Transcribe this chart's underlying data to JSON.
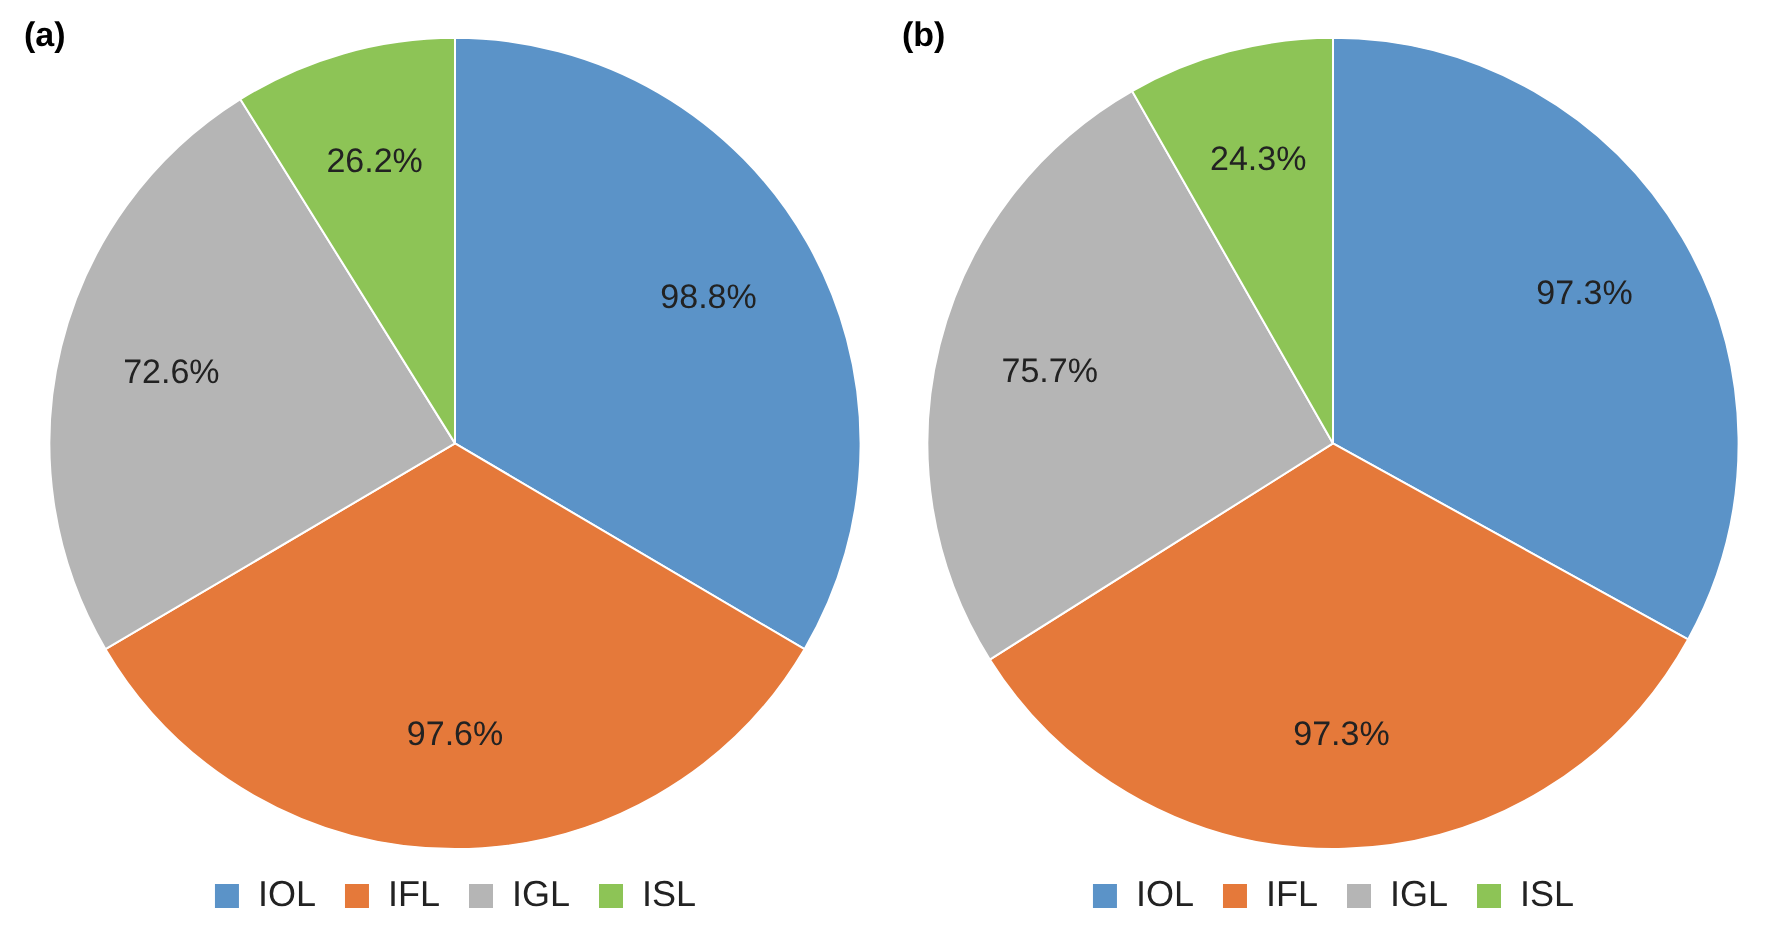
{
  "chart_data": [
    {
      "type": "pie",
      "title": "(a)",
      "categories": [
        "IOL",
        "IFL",
        "IGL",
        "ISL"
      ],
      "values": [
        98.8,
        97.6,
        72.6,
        26.2
      ],
      "colors": [
        "#5b93c8",
        "#e5793a",
        "#b5b5b5",
        "#8dc456"
      ],
      "value_labels": [
        "98.8%",
        "97.6%",
        "72.6%",
        "26.2%"
      ],
      "legend": "bottom"
    },
    {
      "type": "pie",
      "title": "(b)",
      "categories": [
        "IOL",
        "IFL",
        "IGL",
        "ISL"
      ],
      "values": [
        97.3,
        97.3,
        75.7,
        24.3
      ],
      "colors": [
        "#5b93c8",
        "#e5793a",
        "#b5b5b5",
        "#8dc456"
      ],
      "value_labels": [
        "97.3%",
        "97.3%",
        "75.7%",
        "24.3%"
      ],
      "legend": "bottom"
    }
  ]
}
